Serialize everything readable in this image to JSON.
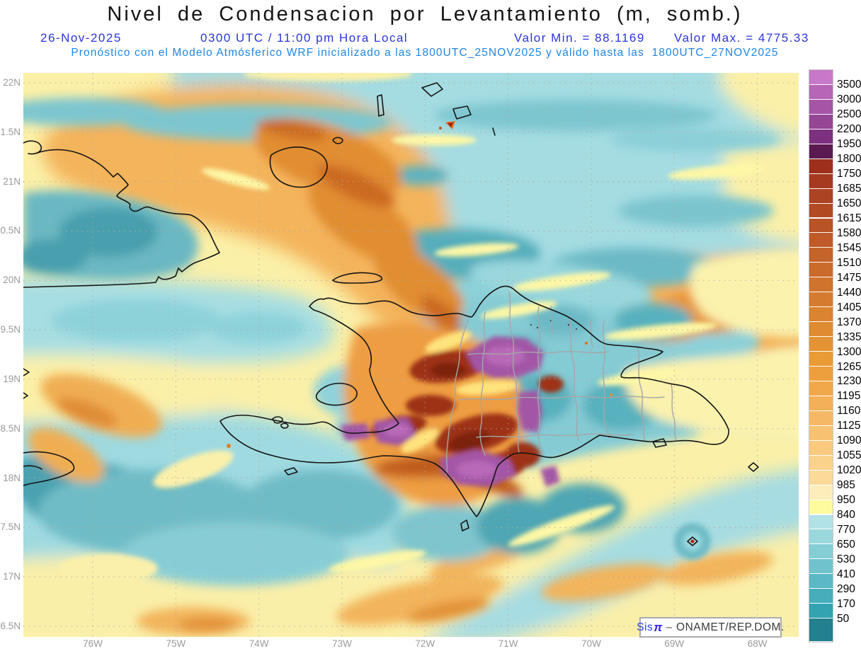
{
  "header": {
    "title": "Nivel de Condensacion por Levantamiento (m, somb.)",
    "date": "26-Nov-2025",
    "time": "0300 UTC / 11:00 pm Hora Local",
    "valor_min": "Valor Min. = 88.1169",
    "valor_max": "Valor Max. = 4775.33",
    "subtitle": "Pronóstico con el Modelo Atmósferico WRF inicializado a las 1800UTC_25NOV2025 y válido hasta las  1800UTC_27NOV2025"
  },
  "watermark": {
    "sis": "Sis",
    "pi": "π",
    "dash": "–",
    "org": "ONAMET/REP.DOM."
  },
  "chart_data": {
    "type": "filled-contour-map",
    "parameter": "Nivel de Condensacion por Levantamiento",
    "units": "m",
    "shading_note": "somb.",
    "value_min": 88.1169,
    "value_max": 4775.33,
    "model_init": "1800UTC_25NOV2025",
    "model_valid_until": "1800UTC_27NOV2025",
    "x_axis": {
      "ticks": [
        "76W",
        "75W",
        "74W",
        "73W",
        "72W",
        "71W",
        "70W",
        "69W",
        "68W"
      ]
    },
    "y_axis": {
      "ticks": [
        "22N",
        "1.5N",
        "21N",
        "0.5N",
        "20N",
        "9.5N",
        "19N",
        "8.5N",
        "18N",
        "7.5N",
        "17N",
        "6.5N"
      ]
    },
    "contour_levels": [
      50,
      170,
      290,
      410,
      530,
      650,
      770,
      840,
      950,
      985,
      1020,
      1055,
      1090,
      1125,
      1160,
      1195,
      1230,
      1265,
      1300,
      1335,
      1370,
      1405,
      1440,
      1475,
      1510,
      1545,
      1580,
      1615,
      1650,
      1685,
      1750,
      1800,
      1950,
      2200,
      2500,
      3000,
      3500
    ],
    "colorbar": {
      "labels": [
        "3500",
        "3000",
        "2500",
        "2200",
        "1950",
        "1800",
        "1750",
        "1685",
        "1650",
        "1615",
        "1580",
        "1545",
        "1510",
        "1475",
        "1440",
        "1405",
        "1370",
        "1335",
        "1300",
        "1265",
        "1230",
        "1195",
        "1160",
        "1125",
        "1090",
        "1055",
        "1020",
        "985",
        "950",
        "840",
        "770",
        "650",
        "530",
        "410",
        "290",
        "170",
        "50"
      ],
      "colors": [
        "#c878c8",
        "#b765b7",
        "#a655a6",
        "#954694",
        "#7e3080",
        "#5c1a52",
        "#9e2f1d",
        "#a63a20",
        "#ac4322",
        "#b24b24",
        "#b85326",
        "#be5b28",
        "#c4632a",
        "#ca6b2c",
        "#cf732d",
        "#d47b2f",
        "#da8330",
        "#df8b32",
        "#e49334",
        "#e99b36",
        "#ed9f3e",
        "#f0a84b",
        "#f3b058",
        "#f5b965",
        "#f7c172",
        "#f9c97f",
        "#fad28c",
        "#fbda99",
        "#fcedbb",
        "#fdfb9e",
        "#b0e2e7",
        "#9bd8de",
        "#85ced6",
        "#70c3cd",
        "#5bb8c4",
        "#47adbb",
        "#33a2b1",
        "#23808e"
      ]
    },
    "grid": true,
    "legend_position": "right"
  }
}
